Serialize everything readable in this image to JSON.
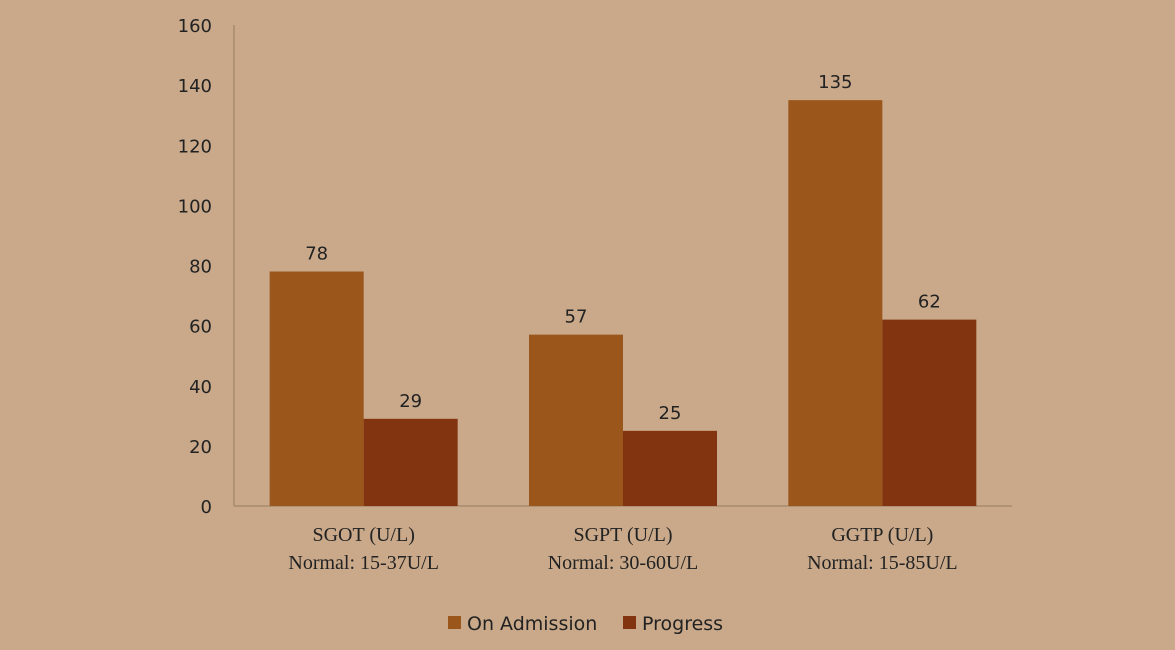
{
  "chart_data": {
    "type": "bar",
    "categories": [
      {
        "name": "SGOT (U/L)",
        "normal": "Normal: 15-37U/L"
      },
      {
        "name": "SGPT (U/L)",
        "normal": "Normal: 30-60U/L"
      },
      {
        "name": "GGTP (U/L)",
        "normal": "Normal: 15-85U/L"
      }
    ],
    "series": [
      {
        "name": "On Admission",
        "color": "#9b561b",
        "values": [
          78,
          57,
          135
        ]
      },
      {
        "name": "Progress",
        "color": "#823410",
        "values": [
          29,
          25,
          62
        ]
      }
    ],
    "yticks": [
      0,
      20,
      40,
      60,
      80,
      100,
      120,
      140,
      160
    ],
    "ylim": [
      0,
      160
    ],
    "grid": false,
    "legend_position": "bottom",
    "axis_color": "#a88a6e"
  }
}
